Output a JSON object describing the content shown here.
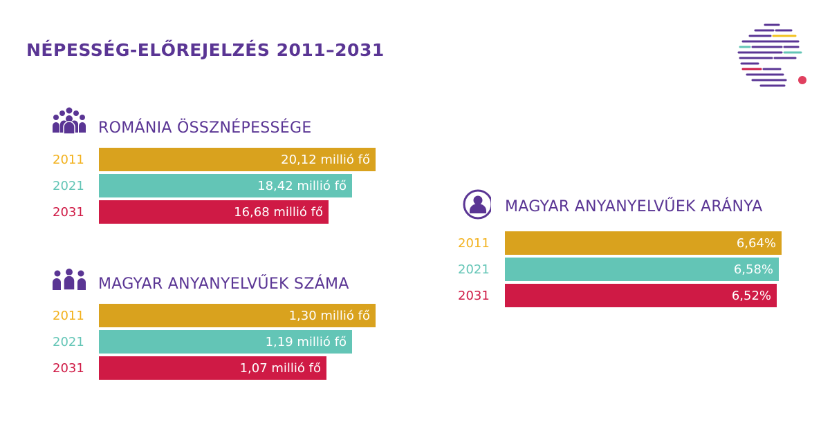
{
  "title": "NÉPESSÉG-ELŐREJELZÉS 2011–2031",
  "colors": {
    "title": "#5a3594",
    "y2011": "#d9a21e",
    "y2021": "#63c5b6",
    "y2031": "#cf1a45"
  },
  "logo_icon": "striped-globe-logo-icon",
  "chart_data": [
    {
      "type": "bar",
      "orientation": "horizontal",
      "title": "ROMÁNIA ÖSSZNÉPESSÉGE",
      "icon": "people-group-icon",
      "unit": "millió fő",
      "categories": [
        "2011",
        "2021",
        "2031"
      ],
      "values": [
        20.12,
        18.42,
        16.68
      ],
      "value_labels": [
        "20,12 millió fő",
        "18,42 millió fő",
        "16,68 millió fő"
      ],
      "xlim": [
        0,
        20.12
      ]
    },
    {
      "type": "bar",
      "orientation": "horizontal",
      "title": "MAGYAR ANYANYELVŰEK SZÁMA",
      "icon": "people-row-icon",
      "unit": "millió fő",
      "categories": [
        "2011",
        "2021",
        "2031"
      ],
      "values": [
        1.3,
        1.19,
        1.07
      ],
      "value_labels": [
        "1,30 millió fő",
        "1,19 millió fő",
        "1,07 millió fő"
      ],
      "xlim": [
        0,
        1.3
      ]
    },
    {
      "type": "bar",
      "orientation": "horizontal",
      "title": "MAGYAR ANYANYELVŰEK ARÁNYA",
      "icon": "person-circle-icon",
      "unit": "%",
      "categories": [
        "2011",
        "2021",
        "2031"
      ],
      "values": [
        6.64,
        6.58,
        6.52
      ],
      "value_labels": [
        "6,64%",
        "6,58%",
        "6,52%"
      ],
      "xlim": [
        0,
        6.64
      ]
    }
  ]
}
